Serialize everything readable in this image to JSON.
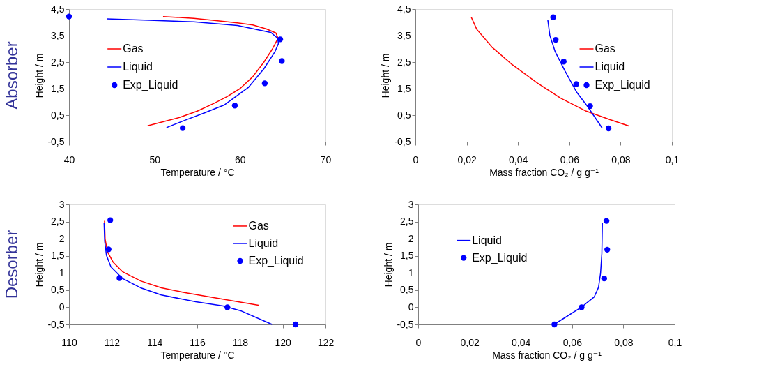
{
  "chart_data": [
    {
      "type": "line",
      "title": "Absorber",
      "xlabel": "Temperature / °C",
      "ylabel": "Height / m",
      "legend": "left",
      "xlim": [
        40,
        70
      ],
      "xticks": [
        40,
        50,
        60,
        70
      ],
      "ylim": [
        -0.5,
        4.5
      ],
      "yticks": [
        {
          "value": -0.5,
          "label": "-0,5"
        },
        {
          "value": 0.5,
          "label": "0,5"
        },
        {
          "value": 1.5,
          "label": "1,5"
        },
        {
          "value": 2.5,
          "label": "2,5"
        },
        {
          "value": 3.5,
          "label": "3,5"
        },
        {
          "value": 4.5,
          "label": "4,5"
        }
      ],
      "grid": false,
      "series": [
        {
          "name": "Gas",
          "color": "#ff0000",
          "line_style": "solid",
          "x": [
            49.2,
            51,
            53,
            55,
            57,
            58.5,
            60,
            61.5,
            62.8,
            63.8,
            64.45,
            64.2,
            63.1,
            61.5,
            59.7,
            57,
            54.6,
            51
          ],
          "values": [
            0.1,
            0.25,
            0.42,
            0.65,
            0.95,
            1.2,
            1.5,
            1.95,
            2.5,
            3.0,
            3.4,
            3.6,
            3.75,
            3.9,
            3.98,
            4.07,
            4.15,
            4.22
          ]
        },
        {
          "name": "Liquid",
          "color": "#0000ff",
          "line_style": "solid",
          "x": [
            51.4,
            53.5,
            55.8,
            58.2,
            61.0,
            62.8,
            64.1,
            64.5,
            64.4,
            63.6,
            59.7,
            54.6,
            49.4,
            44.4
          ],
          "values": [
            0.03,
            0.3,
            0.58,
            0.89,
            1.55,
            2.25,
            2.9,
            3.2,
            3.4,
            3.62,
            3.88,
            4.02,
            4.08,
            4.13
          ]
        },
        {
          "name": "Exp_Liquid",
          "type": "scatter",
          "marker": "circle",
          "color": "#0000ff",
          "x": [
            40,
            64.7,
            64.9,
            62.9,
            59.4,
            53.3
          ],
          "values": [
            4.22,
            3.36,
            2.54,
            1.7,
            0.86,
            0.01
          ]
        }
      ]
    },
    {
      "type": "line",
      "xlabel": "Mass fraction CO₂ / g g⁻¹",
      "ylabel": "Height / m",
      "legend": "right",
      "xlim": [
        0,
        0.1
      ],
      "xticks": [
        0,
        {
          "value": 0.02,
          "label": "0,02"
        },
        {
          "value": 0.04,
          "label": "0,04"
        },
        {
          "value": 0.06,
          "label": "0,06"
        },
        {
          "value": 0.08,
          "label": "0,08"
        },
        {
          "value": 0.1,
          "label": "0,1"
        }
      ],
      "ylim": [
        -0.5,
        4.5
      ],
      "yticks": [
        {
          "value": -0.5,
          "label": "-0,5"
        },
        {
          "value": 0.5,
          "label": "0,5"
        },
        {
          "value": 1.5,
          "label": "1,5"
        },
        {
          "value": 2.5,
          "label": "2,5"
        },
        {
          "value": 3.5,
          "label": "3,5"
        },
        {
          "value": 4.5,
          "label": "4,5"
        }
      ],
      "grid": false,
      "series": [
        {
          "name": "Gas",
          "color": "#ff0000",
          "line_style": "solid",
          "x": [
            0.0218,
            0.0239,
            0.0298,
            0.0373,
            0.0474,
            0.0566,
            0.0666,
            0.0759,
            0.0832
          ],
          "values": [
            4.19,
            3.74,
            3.07,
            2.44,
            1.72,
            1.14,
            0.65,
            0.33,
            0.09
          ]
        },
        {
          "name": "Liquid",
          "color": "#0000ff",
          "line_style": "solid",
          "x": [
            0.0516,
            0.0524,
            0.0545,
            0.0583,
            0.0629,
            0.0671,
            0.0729
          ],
          "values": [
            4.1,
            3.51,
            2.89,
            2.17,
            1.36,
            0.83,
            0.0
          ]
        },
        {
          "name": "Exp_Liquid",
          "type": "scatter",
          "marker": "circle",
          "color": "#0000ff",
          "x": [
            0.0537,
            0.0547,
            0.0578,
            0.0627,
            0.0681,
            0.0753
          ],
          "values": [
            4.19,
            3.34,
            2.52,
            1.67,
            0.84,
            0.0
          ]
        }
      ]
    },
    {
      "type": "line",
      "title": "Desorber",
      "xlabel": "Temperature / °C",
      "ylabel": "Height / m",
      "legend": "top right",
      "xlim": [
        110,
        122
      ],
      "xticks": [
        110,
        112,
        114,
        116,
        118,
        120,
        122
      ],
      "ylim": [
        -0.5,
        3
      ],
      "yticks": [
        {
          "value": -0.5,
          "label": "-0,5"
        },
        0,
        {
          "value": 0.5,
          "label": "0,5"
        },
        1,
        {
          "value": 1.5,
          "label": "1,5"
        },
        2,
        {
          "value": 2.5,
          "label": "2,5"
        },
        3
      ],
      "grid": false,
      "series": [
        {
          "name": "Gas",
          "color": "#ff0000",
          "line_style": "solid",
          "x": [
            111.66,
            111.69,
            111.8,
            112.07,
            112.5,
            113.35,
            114.32,
            115.39,
            117.0,
            118.87
          ],
          "values": [
            2.52,
            1.99,
            1.62,
            1.31,
            1.04,
            0.77,
            0.57,
            0.43,
            0.26,
            0.06
          ]
        },
        {
          "name": "Liquid",
          "color": "#0000ff",
          "line_style": "solid",
          "x": [
            111.64,
            111.67,
            111.75,
            111.96,
            112.5,
            113.35,
            114.32,
            115.93,
            117.21,
            118.07,
            119.5
          ],
          "values": [
            2.47,
            1.93,
            1.52,
            1.18,
            0.84,
            0.57,
            0.36,
            0.16,
            0.04,
            -0.11,
            -0.5
          ]
        },
        {
          "name": "Exp_Liquid",
          "type": "scatter",
          "marker": "circle",
          "color": "#0000ff",
          "x": [
            111.93,
            111.85,
            112.36,
            117.41,
            120.6
          ],
          "values": [
            2.54,
            1.69,
            0.85,
            0.0,
            -0.5
          ]
        }
      ]
    },
    {
      "type": "line",
      "xlabel": "Mass fraction CO₂ / g g⁻¹",
      "ylabel": "Height / m",
      "legend": "left",
      "xlim": [
        0,
        0.1
      ],
      "xticks": [
        0,
        {
          "value": 0.02,
          "label": "0,02"
        },
        {
          "value": 0.04,
          "label": "0,04"
        },
        {
          "value": 0.06,
          "label": "0,06"
        },
        {
          "value": 0.08,
          "label": "0,08"
        },
        {
          "value": 0.1,
          "label": "0,1"
        }
      ],
      "ylim": [
        -0.5,
        3
      ],
      "yticks": [
        {
          "value": -0.5,
          "label": "-0,5"
        },
        0,
        {
          "value": 0.5,
          "label": "0,5"
        },
        1,
        {
          "value": 1.5,
          "label": "1,5"
        },
        2,
        {
          "value": 2.5,
          "label": "2,5"
        },
        3
      ],
      "grid": false,
      "series": [
        {
          "name": "Liquid",
          "color": "#0000ff",
          "line_style": "solid",
          "x": [
            0.053,
            0.0636,
            0.0686,
            0.0703,
            0.0711,
            0.0716,
            0.0718
          ],
          "values": [
            -0.5,
            0.0,
            0.3,
            0.58,
            1.0,
            1.57,
            2.45
          ]
        },
        {
          "name": "Exp_Liquid",
          "type": "scatter",
          "marker": "circle",
          "color": "#0000ff",
          "x": [
            0.0734,
            0.0737,
            0.0725,
            0.0637,
            0.0531
          ],
          "values": [
            2.52,
            1.68,
            0.84,
            0.0,
            -0.5
          ]
        }
      ]
    }
  ]
}
